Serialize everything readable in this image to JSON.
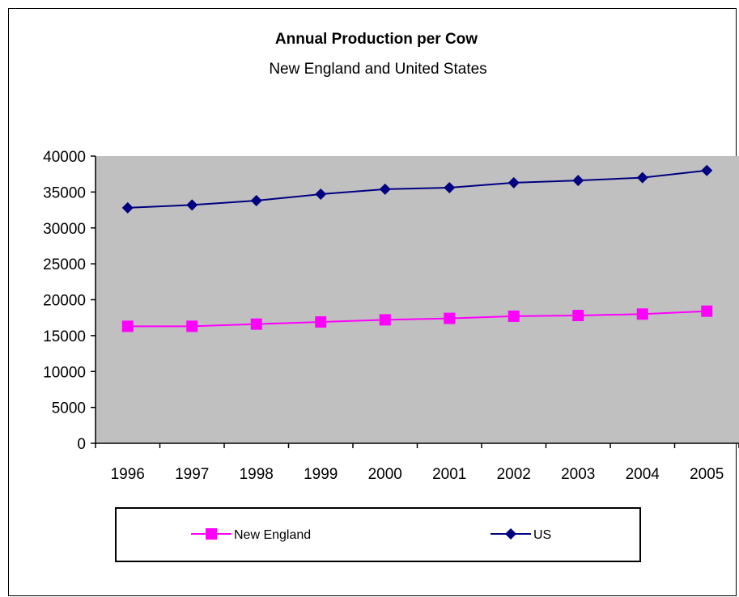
{
  "chart_data": {
    "type": "line",
    "title": "Annual Production per Cow",
    "subtitle": "New England and United States",
    "xlabel": "",
    "ylabel": "",
    "categories": [
      "1996",
      "1997",
      "1998",
      "1999",
      "2000",
      "2001",
      "2002",
      "2003",
      "2004",
      "2005"
    ],
    "ylim": [
      0,
      40000
    ],
    "yticks": [
      "0",
      "5000",
      "10000",
      "15000",
      "20000",
      "25000",
      "30000",
      "35000",
      "40000"
    ],
    "grid": false,
    "plot_background": "#c0c0c0",
    "legend_position": "bottom",
    "series": [
      {
        "name": "New England",
        "color": "#ff00ff",
        "marker": "square",
        "values": [
          16300,
          16300,
          16600,
          16900,
          17200,
          17400,
          17700,
          17800,
          18000,
          18400
        ]
      },
      {
        "name": "US",
        "color": "#000080",
        "marker": "diamond",
        "values": [
          32800,
          33200,
          33800,
          34700,
          35400,
          35600,
          36300,
          36600,
          37000,
          38000
        ]
      }
    ]
  }
}
